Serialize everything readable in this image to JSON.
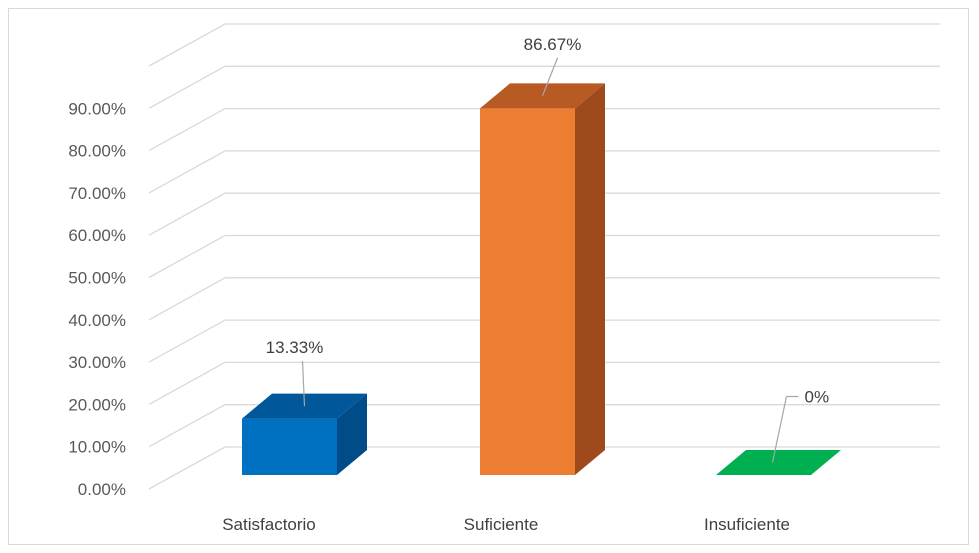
{
  "chart_data": {
    "type": "bar",
    "style": "3d-column",
    "title": "",
    "xlabel": "",
    "ylabel": "",
    "categories": [
      "Satisfactorio",
      "Suficiente",
      "Insuficiente"
    ],
    "values": [
      13.33,
      86.67,
      0
    ],
    "data_labels": [
      "13.33%",
      "86.67%",
      "0%"
    ],
    "colors": [
      "#0070C0",
      "#ED7D31",
      "#00B050"
    ],
    "side_colors": [
      "#004C88",
      "#9E4A1C",
      "#007A3A"
    ],
    "top_colors": [
      "#00579A",
      "#B85A24",
      "#008C42"
    ],
    "ylim": [
      0,
      100
    ],
    "yticks": [
      "0.00%",
      "10.00%",
      "20.00%",
      "30.00%",
      "40.00%",
      "50.00%",
      "60.00%",
      "70.00%",
      "80.00%",
      "90.00%"
    ],
    "grid": true,
    "legend": "none"
  }
}
